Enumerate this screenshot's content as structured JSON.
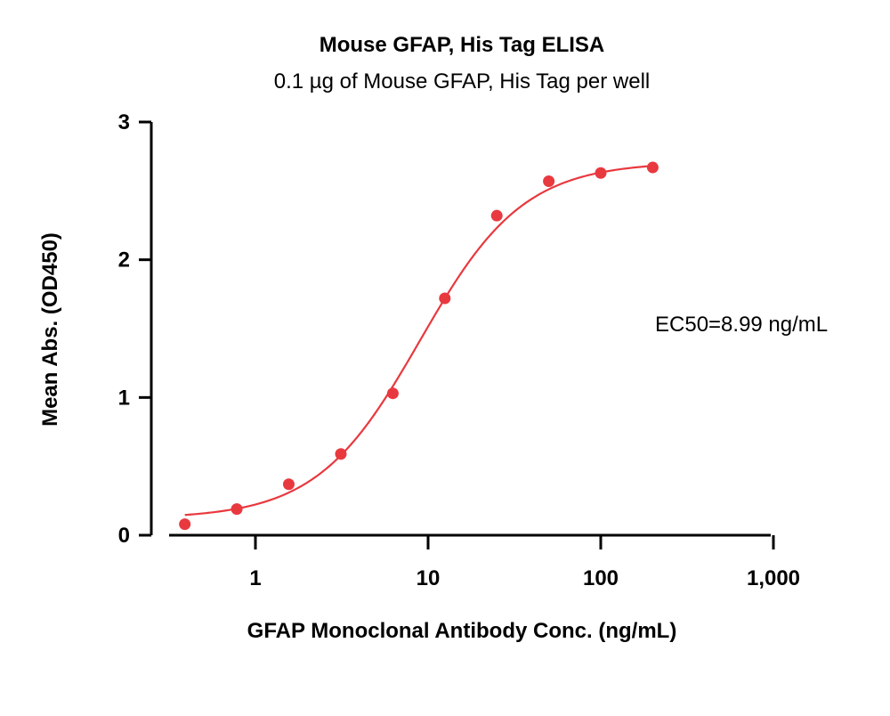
{
  "chart_data": {
    "type": "scatter",
    "title": "Mouse GFAP, His Tag ELISA",
    "subtitle": "0.1 µg of Mouse GFAP, His Tag per well",
    "xlabel": "GFAP Monoclonal Antibody Conc. (ng/mL)",
    "ylabel": "Mean Abs. (OD450)",
    "x_scale": "log",
    "xlim": [
      0.3,
      1000
    ],
    "ylim": [
      0,
      3
    ],
    "x_ticks": [
      {
        "value": 1,
        "label": "1"
      },
      {
        "value": 10,
        "label": "10"
      },
      {
        "value": 100,
        "label": "100"
      },
      {
        "value": 1000,
        "label": "1,000"
      }
    ],
    "y_ticks": [
      {
        "value": 0,
        "label": "0"
      },
      {
        "value": 1,
        "label": "1"
      },
      {
        "value": 2,
        "label": "2"
      },
      {
        "value": 3,
        "label": "3"
      }
    ],
    "grid": false,
    "legend": "none",
    "series": [
      {
        "x": [
          0.39,
          0.78,
          1.56,
          3.125,
          6.25,
          12.5,
          25,
          50,
          100,
          200
        ],
        "y": [
          0.08,
          0.19,
          0.37,
          0.59,
          1.03,
          1.72,
          2.32,
          2.57,
          2.63,
          2.67
        ],
        "color": "#e8393f"
      }
    ],
    "fit": {
      "model": "4PL",
      "bottom": 0.12,
      "top": 2.71,
      "ec50": 8.99,
      "hill": 1.45,
      "x_range": [
        0.39,
        200
      ],
      "color": "#e8393f"
    },
    "annotation": "EC50=8.99 ng/mL"
  }
}
